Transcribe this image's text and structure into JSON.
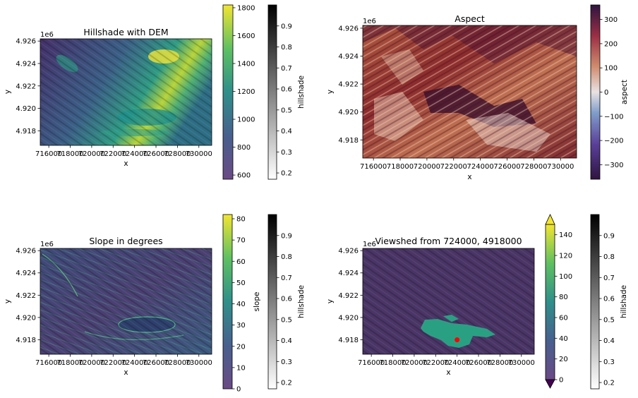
{
  "chart_data": [
    {
      "type": "heatmap",
      "title": "Hillshade with DEM",
      "xlabel": "x",
      "ylabel": "y",
      "x_ticks": [
        716000,
        718000,
        720000,
        722000,
        724000,
        726000,
        728000,
        730000
      ],
      "x_tick_labels": [
        "716000",
        "718000",
        "720000",
        "722000",
        "724000",
        "726000",
        "728000",
        "730000"
      ],
      "y_ticks": [
        4.918,
        4.92,
        4.922,
        4.924,
        4.926
      ],
      "y_tick_labels": [
        "4.918",
        "4.920",
        "4.922",
        "4.924",
        "4.926"
      ],
      "y_offset_label": "1e6",
      "xlim": [
        715200,
        731200
      ],
      "ylim": [
        4.9167,
        4.9262
      ],
      "colormap": "viridis",
      "colorbars": [
        {
          "label": "",
          "cmap": "viridis",
          "range": [
            570,
            1820
          ],
          "ticks": [
            600,
            800,
            1000,
            1200,
            1400,
            1600,
            1800
          ],
          "tick_labels": [
            "600",
            "800",
            "1000",
            "1200",
            "1400",
            "1600",
            "1800"
          ]
        },
        {
          "label": "hillshade",
          "cmap": "gray_r",
          "range": [
            0.17,
            1.0
          ],
          "ticks": [
            0.2,
            0.3,
            0.4,
            0.5,
            0.6,
            0.7,
            0.8,
            0.9
          ],
          "tick_labels": [
            "0.2",
            "0.3",
            "0.4",
            "0.5",
            "0.6",
            "0.7",
            "0.8",
            "0.9"
          ]
        }
      ]
    },
    {
      "type": "heatmap",
      "title": "Aspect",
      "xlabel": "x",
      "ylabel": "y",
      "x_ticks": [
        716000,
        718000,
        720000,
        722000,
        724000,
        726000,
        728000,
        730000
      ],
      "x_tick_labels": [
        "716000",
        "718000",
        "720000",
        "722000",
        "724000",
        "726000",
        "728000",
        "730000"
      ],
      "y_ticks": [
        4.918,
        4.92,
        4.922,
        4.924,
        4.926
      ],
      "y_tick_labels": [
        "4.918",
        "4.920",
        "4.922",
        "4.924",
        "4.926"
      ],
      "y_offset_label": "1e6",
      "xlim": [
        715200,
        731200
      ],
      "ylim": [
        4.9167,
        4.9262
      ],
      "colormap": "twilight_shifted",
      "colorbars": [
        {
          "label": "aspect",
          "cmap": "twilight",
          "range": [
            -360,
            360
          ],
          "ticks": [
            -300,
            -200,
            -100,
            0,
            100,
            200,
            300
          ],
          "tick_labels": [
            "−300",
            "−200",
            "−100",
            "0",
            "100",
            "200",
            "300"
          ]
        }
      ]
    },
    {
      "type": "heatmap",
      "title": "Slope in degrees",
      "xlabel": "x",
      "ylabel": "y",
      "x_ticks": [
        716000,
        718000,
        720000,
        722000,
        724000,
        726000,
        728000,
        730000
      ],
      "x_tick_labels": [
        "716000",
        "718000",
        "720000",
        "722000",
        "724000",
        "726000",
        "728000",
        "730000"
      ],
      "y_ticks": [
        4.918,
        4.92,
        4.922,
        4.924,
        4.926
      ],
      "y_tick_labels": [
        "4.918",
        "4.920",
        "4.922",
        "4.924",
        "4.926"
      ],
      "y_offset_label": "1e6",
      "xlim": [
        715200,
        731200
      ],
      "ylim": [
        4.9167,
        4.9262
      ],
      "colormap": "viridis",
      "colorbars": [
        {
          "label": "slope",
          "cmap": "viridis",
          "range": [
            0,
            82
          ],
          "ticks": [
            0,
            10,
            20,
            30,
            40,
            50,
            60,
            70,
            80
          ],
          "tick_labels": [
            "0",
            "10",
            "20",
            "30",
            "40",
            "50",
            "60",
            "70",
            "80"
          ]
        },
        {
          "label": "hillshade",
          "cmap": "gray_r",
          "range": [
            0.17,
            1.0
          ],
          "ticks": [
            0.2,
            0.3,
            0.4,
            0.5,
            0.6,
            0.7,
            0.8,
            0.9
          ],
          "tick_labels": [
            "0.2",
            "0.3",
            "0.4",
            "0.5",
            "0.6",
            "0.7",
            "0.8",
            "0.9"
          ]
        }
      ]
    },
    {
      "type": "heatmap",
      "title": "Viewshed from 724000, 4918000",
      "xlabel": "x",
      "ylabel": "y",
      "x_ticks": [
        716000,
        718000,
        720000,
        722000,
        724000,
        726000,
        728000,
        730000
      ],
      "x_tick_labels": [
        "716000",
        "718000",
        "720000",
        "722000",
        "724000",
        "726000",
        "728000",
        "730000"
      ],
      "y_ticks": [
        4.918,
        4.92,
        4.922,
        4.924,
        4.926
      ],
      "y_tick_labels": [
        "4.918",
        "4.920",
        "4.922",
        "4.924",
        "4.926"
      ],
      "y_offset_label": "1e6",
      "xlim": [
        715200,
        731200
      ],
      "ylim": [
        4.9167,
        4.9262
      ],
      "colormap": "viridis",
      "observer_point": {
        "x": 724000,
        "y": 4.918,
        "color": "#ff0000"
      },
      "colorbars": [
        {
          "label": "",
          "cmap": "viridis",
          "range": [
            0,
            150
          ],
          "extend": "both",
          "ticks": [
            0,
            20,
            40,
            60,
            80,
            100,
            120,
            140
          ],
          "tick_labels": [
            "0",
            "20",
            "40",
            "60",
            "80",
            "100",
            "120",
            "140"
          ]
        },
        {
          "label": "hillshade",
          "cmap": "gray_r",
          "range": [
            0.17,
            1.0
          ],
          "ticks": [
            0.2,
            0.3,
            0.4,
            0.5,
            0.6,
            0.7,
            0.8,
            0.9
          ],
          "tick_labels": [
            "0.2",
            "0.3",
            "0.4",
            "0.5",
            "0.6",
            "0.7",
            "0.8",
            "0.9"
          ]
        }
      ]
    }
  ]
}
